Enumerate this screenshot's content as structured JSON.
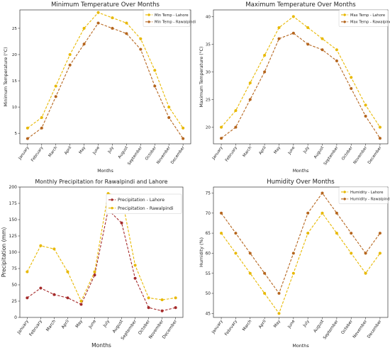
{
  "chart_data": [
    {
      "type": "line",
      "title": "Minimum Temperature Over Months",
      "xlabel": "Months",
      "ylabel": "Minimum Temperature (°C)",
      "categories": [
        "January",
        "February",
        "March",
        "April",
        "May",
        "June",
        "July",
        "August",
        "September",
        "October",
        "November",
        "December"
      ],
      "ylim": [
        3,
        28.5
      ],
      "yticks": [
        5,
        10,
        15,
        20,
        25
      ],
      "legend": "top-right",
      "series": [
        {
          "name": "Min Temp - Lahore",
          "color": "#e8b800",
          "values": [
            6,
            8,
            14,
            20,
            25,
            28,
            27,
            26,
            23,
            17,
            10,
            6
          ]
        },
        {
          "name": "Min Temp - Rawalpindi",
          "color": "#b5651d",
          "values": [
            4,
            6,
            12,
            18,
            22,
            26,
            25,
            24,
            21,
            14,
            8,
            4
          ]
        }
      ]
    },
    {
      "type": "line",
      "title": "Maximum Temperature Over Months",
      "xlabel": "Months",
      "ylabel": "Maximum Temperature (°C)",
      "categories": [
        "January",
        "February",
        "March",
        "April",
        "May",
        "June",
        "July",
        "August",
        "September",
        "October",
        "November",
        "December"
      ],
      "ylim": [
        17,
        41.2
      ],
      "yticks": [
        20,
        25,
        30,
        35,
        40
      ],
      "legend": "top-right",
      "series": [
        {
          "name": "Max Temp - Lahore",
          "color": "#e8b800",
          "values": [
            20,
            23,
            28,
            33,
            38,
            40,
            38,
            36,
            34,
            29,
            24,
            20
          ]
        },
        {
          "name": "Max Temp - Rawalpindi",
          "color": "#b5651d",
          "values": [
            18,
            20,
            25,
            30,
            36,
            37,
            35,
            34,
            32,
            27,
            22,
            18
          ]
        }
      ]
    },
    {
      "type": "line",
      "title": "Monthly Precipitation for Rawalpindi and Lahore",
      "xlabel": "Months",
      "ylabel": "Precipitation (mm)",
      "categories": [
        "January",
        "February",
        "March",
        "April",
        "May",
        "June",
        "July",
        "August",
        "September",
        "October",
        "November",
        "December"
      ],
      "ylim": [
        0,
        200
      ],
      "yticks": [
        0,
        25,
        50,
        75,
        100,
        125,
        150,
        175,
        200
      ],
      "legend": "top-right",
      "series": [
        {
          "name": "Precipitation - Lahore",
          "color": "#a52a2a",
          "values": [
            30,
            45,
            35,
            30,
            20,
            65,
            165,
            145,
            60,
            15,
            10,
            15
          ]
        },
        {
          "name": "Precipitation - Rawalpindi",
          "color": "#e8b800",
          "values": [
            70,
            110,
            105,
            70,
            25,
            70,
            190,
            185,
            80,
            30,
            27,
            30
          ]
        }
      ]
    },
    {
      "type": "line",
      "title": "Humidity Over Months",
      "xlabel": "Months",
      "ylabel": "Humidity (%)",
      "categories": [
        "January",
        "February",
        "March",
        "April",
        "May",
        "June",
        "July",
        "August",
        "September",
        "October",
        "November",
        "December"
      ],
      "ylim": [
        44,
        76.5
      ],
      "yticks": [
        45,
        50,
        55,
        60,
        65,
        70,
        75
      ],
      "legend": "top-right",
      "series": [
        {
          "name": "Humidity - Lahore",
          "color": "#e8b800",
          "values": [
            65,
            60,
            55,
            50,
            45,
            55,
            65,
            70,
            65,
            60,
            55,
            60
          ]
        },
        {
          "name": "Humidity - Rawalpindi",
          "color": "#b5651d",
          "values": [
            70,
            65,
            60,
            55,
            50,
            60,
            70,
            75,
            70,
            65,
            60,
            65
          ]
        }
      ]
    }
  ]
}
